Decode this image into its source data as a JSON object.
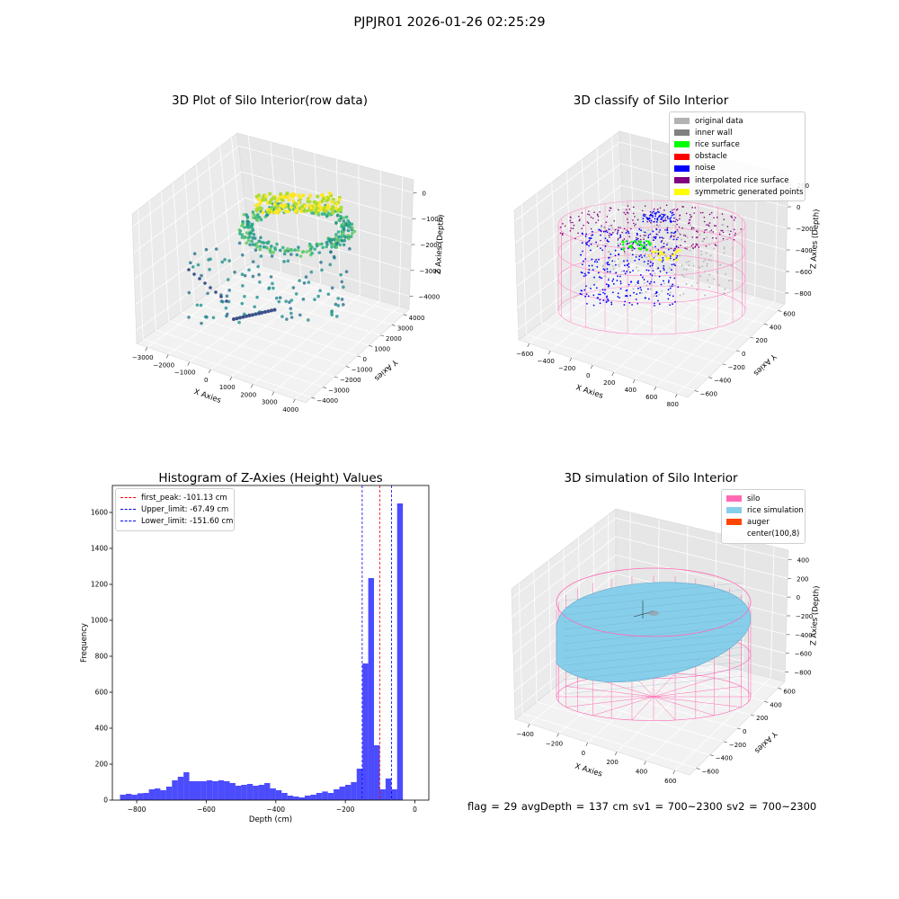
{
  "figure_title": "PJPJR01 2026-01-26 02:25:29",
  "status_line": "flag = 29  avgDepth = 137 cm  sv1 = 700~2300  sv2 = 700~2300",
  "chart_data": [
    {
      "type": "scatter",
      "subtype": "3d",
      "title": "3D Plot of Silo Interior(row data)",
      "xlabel": "X Axies",
      "ylabel": "Y Axies",
      "zlabel": "Z Axies (Depth)",
      "x_ticks": [
        "−3000",
        "−2000",
        "−1000",
        "0",
        "1000",
        "2000",
        "3000",
        "4000"
      ],
      "y_ticks": [
        "−4000",
        "−3000",
        "−2000",
        "−1000",
        "0",
        "1000",
        "2000",
        "3000",
        "4000"
      ],
      "z_ticks": [
        "−4000",
        "−3000",
        "−2000",
        "−1000",
        "0"
      ],
      "xlim": [
        -3300,
        4500
      ],
      "ylim": [
        -4500,
        4500
      ],
      "zlim": [
        -4600,
        200
      ],
      "colormap": "viridis"
    },
    {
      "type": "scatter",
      "subtype": "3d",
      "title": "3D classify of Silo Interior",
      "xlabel": "X Axies",
      "ylabel": "Y Axies",
      "zlabel": "Z Axies (Depth)",
      "x_ticks": [
        "−600",
        "−400",
        "−200",
        "0",
        "200",
        "400",
        "600",
        "800"
      ],
      "y_ticks": [
        "−600",
        "−400",
        "−200",
        "0",
        "200",
        "400",
        "600"
      ],
      "z_ticks": [
        "−800",
        "−600",
        "−400",
        "−200",
        "0",
        "200"
      ],
      "legend_position": "top-right",
      "legend": [
        {
          "label": "original data",
          "color": "#b3b3b3"
        },
        {
          "label": "inner wall",
          "color": "#808080"
        },
        {
          "label": "rice surface",
          "color": "#00ff00"
        },
        {
          "label": "obstacle",
          "color": "#ff0000"
        },
        {
          "label": "noise",
          "color": "#0000ff"
        },
        {
          "label": "interpolated rice surface",
          "color": "#800080"
        },
        {
          "label": "symmetric generated points",
          "color": "#ffff00"
        }
      ]
    },
    {
      "type": "bar",
      "subtype": "histogram",
      "title": "Histogram of Z-Axies (Height) Values",
      "xlabel": "Depth (cm)",
      "ylabel": "Frequency",
      "xlim": [
        -870,
        40
      ],
      "ylim": [
        0,
        1750
      ],
      "x_ticks": [
        -800,
        -600,
        -400,
        -200,
        0
      ],
      "y_ticks": [
        0,
        200,
        400,
        600,
        800,
        1000,
        1200,
        1400,
        1600
      ],
      "bar_color": "#0000ff",
      "bin_start": -848,
      "bin_width": 16.6,
      "values": [
        30,
        35,
        30,
        38,
        40,
        60,
        65,
        55,
        75,
        110,
        130,
        155,
        105,
        105,
        105,
        110,
        105,
        110,
        105,
        95,
        80,
        85,
        90,
        80,
        85,
        95,
        65,
        55,
        40,
        25,
        20,
        15,
        25,
        30,
        40,
        48,
        40,
        60,
        75,
        85,
        100,
        175,
        760,
        1235,
        305,
        60,
        120,
        60,
        1650
      ],
      "vlines": [
        {
          "label": "first_peak: -101.13 cm",
          "x": -101.13,
          "color": "#ff0000"
        },
        {
          "label": "Upper_limit: -67.49 cm",
          "x": -67.49,
          "color": "#0000ff"
        },
        {
          "label": "Lower_limit: -151.60 cm",
          "x": -151.6,
          "color": "#0000ff"
        }
      ],
      "legend_position": "top-left"
    },
    {
      "type": "surface",
      "subtype": "3d",
      "title": "3D simulation of Silo Interior",
      "xlabel": "X Axies",
      "ylabel": "Y Axies",
      "zlabel": "Z Axies (Depth)",
      "x_ticks": [
        "−400",
        "−200",
        "0",
        "200",
        "400",
        "600"
      ],
      "y_ticks": [
        "−600",
        "−400",
        "−200",
        "0",
        "200",
        "400",
        "600"
      ],
      "z_ticks": [
        "−800",
        "−600",
        "−400",
        "−200",
        "0",
        "200",
        "400"
      ],
      "legend_position": "top-right",
      "legend": [
        {
          "label": "silo",
          "color": "#ff69b4"
        },
        {
          "label": "rice simulation",
          "color": "#87ceeb"
        },
        {
          "label": "auger",
          "color": "#ff4500"
        },
        {
          "label": "center(100,8)",
          "color": ""
        }
      ]
    }
  ]
}
